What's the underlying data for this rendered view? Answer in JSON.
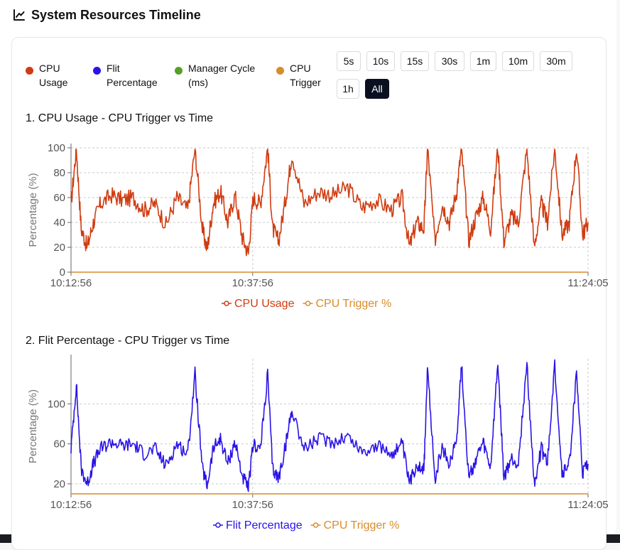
{
  "header": {
    "title": "System Resources Timeline",
    "icon": "line-chart-icon"
  },
  "legend": [
    {
      "label": "CPU Usage",
      "color": "#d03c11"
    },
    {
      "label": "Flit Percentage",
      "color": "#2a14e6"
    },
    {
      "label": "Manager Cycle (ms)",
      "color": "#56a02a"
    },
    {
      "label": "CPU Trigger",
      "color": "#d98c2b"
    }
  ],
  "range_buttons": [
    "5s",
    "10s",
    "15s",
    "30s",
    "1m",
    "10m",
    "30m",
    "1h",
    "All"
  ],
  "active_range": "All",
  "chart_data": [
    {
      "type": "line",
      "title": "1. CPU Usage - CPU Trigger vs Time",
      "ylabel": "Percentage (%)",
      "xlabel": "",
      "ylim": [
        0,
        100
      ],
      "y_ticks": [
        0,
        20,
        40,
        60,
        80,
        100
      ],
      "x_ticks": [
        "10:12:56",
        "10:37:56",
        "11:24:05"
      ],
      "x_range": [
        "10:12:56",
        "11:24:05"
      ],
      "grid": true,
      "legend_position": "bottom",
      "series": [
        {
          "name": "CPU Usage",
          "color": "#d03c11",
          "x": [
            "10:12:56",
            "10:13:40",
            "10:14:20",
            "10:15:10",
            "10:16:00",
            "10:17:00",
            "10:18:30",
            "10:20:00",
            "10:21:30",
            "10:23:00",
            "10:24:30",
            "10:26:00",
            "10:27:30",
            "10:29:00",
            "10:30:00",
            "10:31:00",
            "10:31:40",
            "10:32:30",
            "10:33:30",
            "10:34:30",
            "10:35:30",
            "10:36:30",
            "10:37:20",
            "10:38:00",
            "10:39:00",
            "10:40:00",
            "10:40:40",
            "10:41:30",
            "10:42:30",
            "10:43:20",
            "10:45:00",
            "10:47:00",
            "10:49:00",
            "10:51:00",
            "10:53:00",
            "10:55:00",
            "10:57:00",
            "10:58:30",
            "10:59:30",
            "11:00:30",
            "11:01:30",
            "11:02:00",
            "11:03:00",
            "11:04:00",
            "11:05:00",
            "11:06:00",
            "11:06:40",
            "11:07:40",
            "11:08:40",
            "11:09:40",
            "11:10:40",
            "11:11:40",
            "11:12:30",
            "11:13:30",
            "11:14:30",
            "11:15:40",
            "11:16:40",
            "11:17:40",
            "11:18:30",
            "11:19:30",
            "11:20:30",
            "11:21:30",
            "11:22:30",
            "11:23:20",
            "11:24:05"
          ],
          "values": [
            55,
            100,
            35,
            20,
            40,
            55,
            62,
            58,
            60,
            50,
            55,
            38,
            60,
            50,
            100,
            35,
            18,
            55,
            65,
            40,
            62,
            28,
            15,
            60,
            55,
            100,
            35,
            25,
            60,
            95,
            55,
            65,
            62,
            68,
            52,
            58,
            50,
            60,
            20,
            40,
            35,
            100,
            25,
            55,
            40,
            65,
            100,
            25,
            45,
            60,
            35,
            100,
            25,
            45,
            40,
            100,
            20,
            55,
            40,
            100,
            30,
            40,
            100,
            30,
            40
          ],
          "trigger_values": [
            0
          ]
        },
        {
          "name": "CPU Trigger %",
          "color": "#d98c2b",
          "x": [
            "10:12:56",
            "11:24:05"
          ],
          "values": [
            0,
            0
          ]
        }
      ]
    },
    {
      "type": "line",
      "title": "2. Flit Percentage - CPU Trigger vs Time",
      "ylabel": "Percentage (%)",
      "xlabel": "",
      "ylim": [
        10,
        145
      ],
      "y_ticks": [
        20,
        60,
        100
      ],
      "x_ticks": [
        "10:12:56",
        "10:37:56",
        "11:24:05"
      ],
      "x_range": [
        "10:12:56",
        "11:24:05"
      ],
      "grid": true,
      "legend_position": "bottom",
      "series": [
        {
          "name": "Flit Percentage",
          "color": "#2a14e6",
          "x": [
            "10:12:56",
            "10:13:40",
            "10:14:20",
            "10:15:10",
            "10:16:00",
            "10:17:00",
            "10:18:30",
            "10:20:00",
            "10:21:30",
            "10:23:00",
            "10:24:30",
            "10:26:00",
            "10:27:30",
            "10:29:00",
            "10:30:00",
            "10:31:00",
            "10:31:40",
            "10:32:30",
            "10:33:30",
            "10:34:30",
            "10:35:30",
            "10:36:30",
            "10:37:20",
            "10:38:00",
            "10:39:00",
            "10:40:00",
            "10:40:40",
            "10:41:30",
            "10:42:30",
            "10:43:20",
            "10:45:00",
            "10:47:00",
            "10:49:00",
            "10:51:00",
            "10:53:00",
            "10:55:00",
            "10:57:00",
            "10:58:30",
            "10:59:30",
            "11:00:30",
            "11:01:30",
            "11:02:00",
            "11:03:00",
            "11:04:00",
            "11:05:00",
            "11:06:00",
            "11:06:40",
            "11:07:40",
            "11:08:40",
            "11:09:40",
            "11:10:40",
            "11:11:40",
            "11:12:30",
            "11:13:30",
            "11:14:30",
            "11:15:40",
            "11:16:40",
            "11:17:40",
            "11:18:30",
            "11:19:30",
            "11:20:30",
            "11:21:30",
            "11:22:30",
            "11:23:20",
            "11:24:05"
          ],
          "values": [
            55,
            120,
            35,
            20,
            40,
            55,
            62,
            58,
            60,
            50,
            55,
            38,
            60,
            50,
            130,
            35,
            18,
            55,
            65,
            40,
            62,
            28,
            15,
            60,
            55,
            130,
            35,
            25,
            60,
            95,
            55,
            65,
            62,
            68,
            52,
            58,
            50,
            60,
            20,
            40,
            35,
            135,
            25,
            55,
            40,
            65,
            140,
            25,
            45,
            60,
            35,
            140,
            25,
            45,
            40,
            140,
            20,
            55,
            40,
            140,
            30,
            40,
            130,
            30,
            40
          ]
        },
        {
          "name": "CPU Trigger %",
          "color": "#d98c2b",
          "x": [
            "10:12:56",
            "11:24:05"
          ],
          "values": [
            10,
            10
          ]
        }
      ]
    }
  ]
}
